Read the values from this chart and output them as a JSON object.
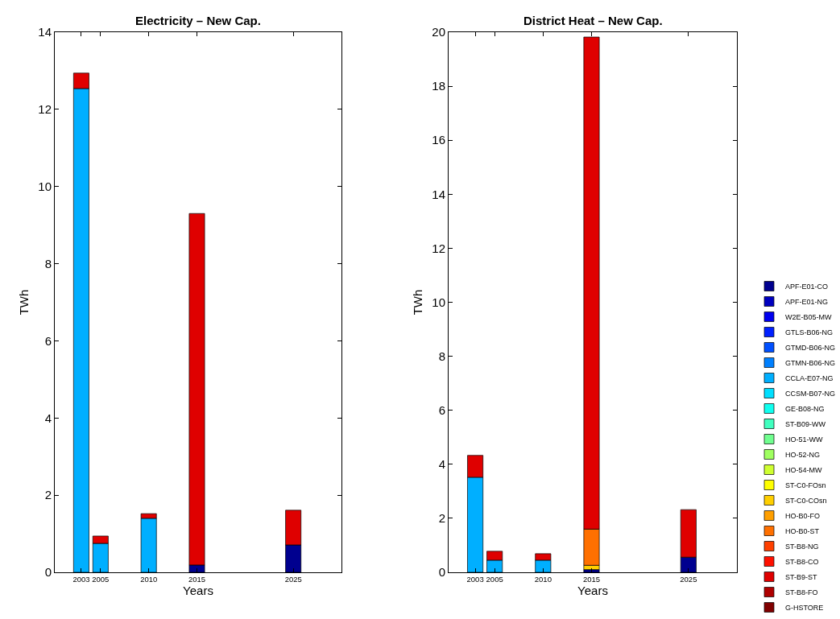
{
  "chart_data": [
    {
      "type": "bar",
      "title": "Electricity – New Cap.",
      "xlabel": "Years",
      "ylabel": "TWh",
      "stacked": true,
      "x": [
        2003,
        2005,
        2010,
        2015,
        2025
      ],
      "xlim": [
        2000.25,
        2030
      ],
      "xticks": [
        2003,
        2005,
        2010,
        2015,
        2025
      ],
      "ylim": [
        0,
        14
      ],
      "yticks": [
        0,
        2,
        4,
        6,
        8,
        10,
        12,
        14
      ],
      "legend": false,
      "series": [
        {
          "color": "#00008f",
          "values": [
            null,
            null,
            null,
            0.19,
            0.71
          ]
        },
        {
          "color": "#00afff",
          "values": [
            12.54,
            0.75,
            1.4,
            null,
            null
          ]
        },
        {
          "color": "#df0000",
          "values": [
            0.4,
            0.19,
            0.12,
            9.11,
            0.9
          ]
        }
      ]
    },
    {
      "type": "bar",
      "title": "District Heat – New Cap.",
      "xlabel": "Years",
      "ylabel": "TWh",
      "stacked": true,
      "x": [
        2003,
        2005,
        2010,
        2015,
        2025
      ],
      "xlim": [
        2000.25,
        2030
      ],
      "xticks": [
        2003,
        2005,
        2010,
        2015,
        2025
      ],
      "ylim": [
        0,
        20
      ],
      "yticks": [
        0,
        2,
        4,
        6,
        8,
        10,
        12,
        14,
        16,
        18,
        20
      ],
      "legend": "bottom right",
      "series": [
        {
          "name": "APF-E01-CO",
          "color": "#00008f",
          "values": [
            null,
            null,
            null,
            0.1,
            0.56
          ]
        },
        {
          "name": "APF-E01-NG",
          "color": "#0000bf",
          "values": [
            null,
            null,
            null,
            null,
            null
          ]
        },
        {
          "name": "W2E-B05-MW",
          "color": "#0000ef",
          "values": [
            null,
            null,
            null,
            null,
            null
          ]
        },
        {
          "name": "GTLS-B06-NG",
          "color": "#0020ff",
          "values": [
            null,
            null,
            null,
            null,
            null
          ]
        },
        {
          "name": "GTMD-B06-NG",
          "color": "#0050ff",
          "values": [
            null,
            null,
            null,
            null,
            null
          ]
        },
        {
          "name": "GTMN-B06-NG",
          "color": "#0080ff",
          "values": [
            null,
            null,
            null,
            null,
            null
          ]
        },
        {
          "name": "CCLA-E07-NG",
          "color": "#00afff",
          "values": [
            3.52,
            0.45,
            0.45,
            null,
            null
          ]
        },
        {
          "name": "CCSM-B07-NG",
          "color": "#00dfff",
          "values": [
            null,
            null,
            null,
            null,
            null
          ]
        },
        {
          "name": "GE-B08-NG",
          "color": "#10ffef",
          "values": [
            null,
            null,
            null,
            null,
            null
          ]
        },
        {
          "name": "ST-B09-WW",
          "color": "#40ffbf",
          "values": [
            null,
            null,
            null,
            null,
            null
          ]
        },
        {
          "name": "HO-51-WW",
          "color": "#70ff8f",
          "values": [
            null,
            null,
            null,
            null,
            null
          ]
        },
        {
          "name": "HO-52-NG",
          "color": "#9fff60",
          "values": [
            null,
            null,
            null,
            null,
            null
          ]
        },
        {
          "name": "HO-54-MW",
          "color": "#cfff30",
          "values": [
            null,
            null,
            null,
            null,
            null
          ]
        },
        {
          "name": "ST-C0-FOsn",
          "color": "#ffff00",
          "values": [
            null,
            null,
            null,
            null,
            null
          ]
        },
        {
          "name": "ST-C0-COsn",
          "color": "#ffcf00",
          "values": [
            null,
            null,
            null,
            0.16,
            null
          ]
        },
        {
          "name": "HO-B0-FO",
          "color": "#ff9f00",
          "values": [
            null,
            null,
            null,
            null,
            null
          ]
        },
        {
          "name": "HO-B0-ST",
          "color": "#ff7000",
          "values": [
            null,
            null,
            null,
            1.34,
            null
          ]
        },
        {
          "name": "ST-B8-NG",
          "color": "#ff4000",
          "values": [
            null,
            null,
            null,
            null,
            null
          ]
        },
        {
          "name": "ST-B8-CO",
          "color": "#ff1000",
          "values": [
            null,
            null,
            null,
            null,
            null
          ]
        },
        {
          "name": "ST-B9-ST",
          "color": "#df0000",
          "values": [
            0.81,
            0.33,
            0.24,
            18.22,
            1.76
          ]
        },
        {
          "name": "ST-B8-FO",
          "color": "#af0000",
          "values": [
            null,
            null,
            null,
            null,
            null
          ]
        },
        {
          "name": "G-HSTORE",
          "color": "#800000",
          "values": [
            null,
            null,
            null,
            null,
            null
          ]
        }
      ]
    }
  ]
}
